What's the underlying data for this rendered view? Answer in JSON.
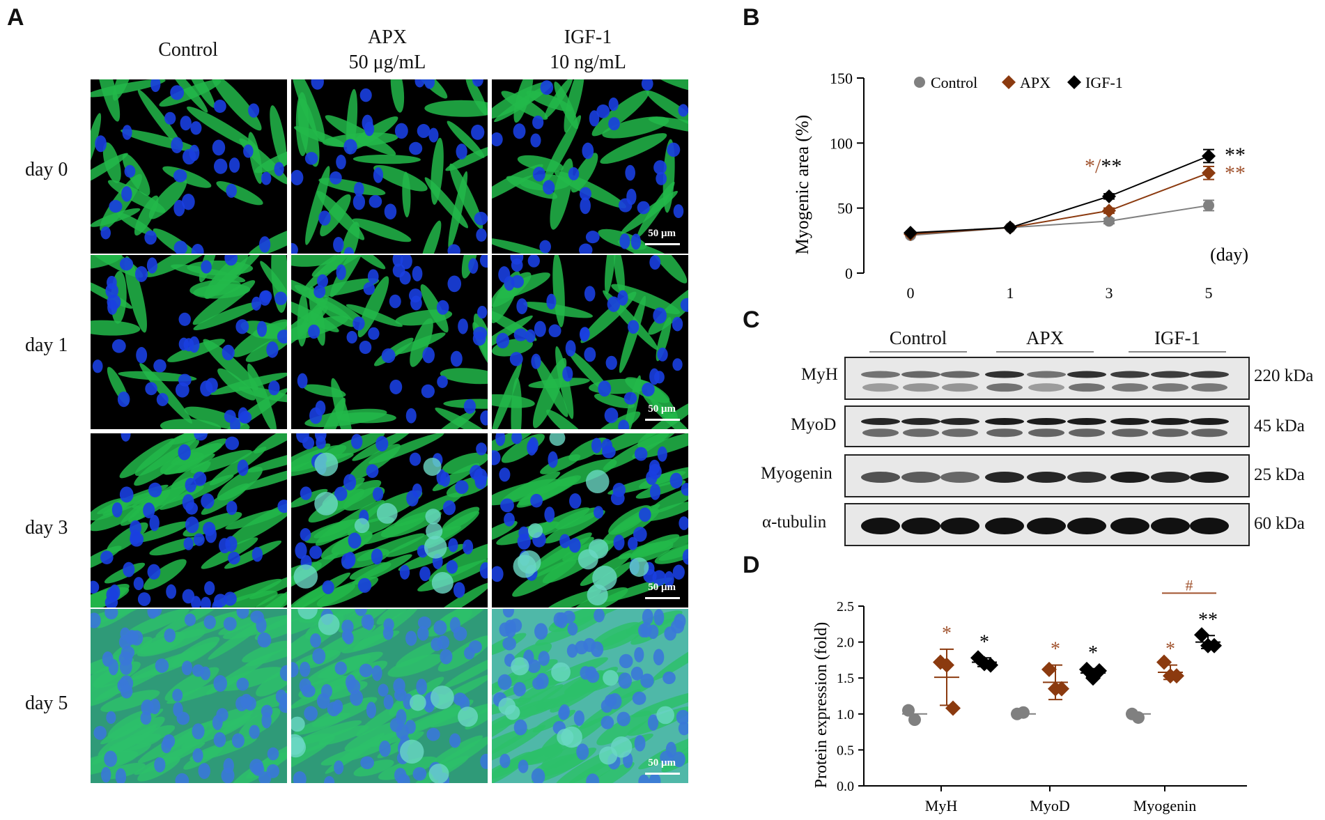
{
  "panels": {
    "a": "A",
    "b": "B",
    "c": "C",
    "d": "D"
  },
  "micrographs": {
    "columns": [
      {
        "line1": "Control",
        "line2": ""
      },
      {
        "line1": "APX",
        "line2": "50 μg/mL"
      },
      {
        "line1": "IGF-1",
        "line2": "10 ng/mL"
      }
    ],
    "rows": [
      "day 0",
      "day 1",
      "day 3",
      "day 5"
    ],
    "scale_bar": "50 μm"
  },
  "chart_data": [
    {
      "type": "line",
      "panel": "B",
      "x": [
        0,
        1,
        3,
        5
      ],
      "xticklabels": [
        "0",
        "1",
        "3",
        "5"
      ],
      "xunit": "(day)",
      "ylabel": "Myogenic  area (%)",
      "ylim": [
        0,
        150
      ],
      "yticks": [
        0,
        50,
        100,
        150
      ],
      "series": [
        {
          "name": "Control",
          "values": [
            29,
            35,
            40,
            52
          ],
          "error": [
            0,
            0,
            2,
            4
          ],
          "color": "#808080",
          "marker": "circle"
        },
        {
          "name": "APX",
          "values": [
            30,
            35,
            48,
            77
          ],
          "error": [
            0,
            0,
            2,
            5
          ],
          "color": "#8b3a0f",
          "marker": "diamond"
        },
        {
          "name": "IGF-1",
          "values": [
            31,
            35,
            59,
            90
          ],
          "error": [
            0,
            0,
            2,
            5
          ],
          "color": "#000000",
          "marker": "diamond"
        }
      ],
      "annotations": [
        {
          "x": 3,
          "parts": [
            {
              "text": "*",
              "color": "#a0522d"
            },
            {
              "text": "/",
              "color": "#a0522d"
            },
            {
              "text": "**",
              "color": "#000000"
            }
          ]
        },
        {
          "x": 5,
          "series": "IGF-1",
          "text": "**",
          "color": "#000000"
        },
        {
          "x": 5,
          "series": "APX",
          "text": "**",
          "color": "#a0522d"
        }
      ],
      "legend": "top",
      "grid": false
    },
    {
      "type": "scatter",
      "panel": "D",
      "categories": [
        "MyH",
        "MyoD",
        "Myogenin"
      ],
      "ylabel": "Protein  expression  (fold)",
      "ylim": [
        0,
        2.5
      ],
      "yticks": [
        "0.0",
        "0.5",
        "1.0",
        "1.5",
        "2.0",
        "2.5"
      ],
      "series": [
        {
          "name": "Control",
          "color": "#808080",
          "marker": "circle",
          "points": [
            [
              1.05,
              0.92
            ],
            [
              1.0,
              1.02
            ],
            [
              1.0,
              0.95
            ]
          ],
          "mean": [
            1.0,
            1.0,
            1.0
          ]
        },
        {
          "name": "APX",
          "color": "#8b3a0f",
          "marker": "diamond",
          "points": [
            [
              1.72,
              1.68,
              1.08
            ],
            [
              1.62,
              1.35,
              1.35
            ],
            [
              1.72,
              1.53,
              1.53
            ]
          ],
          "mean": [
            1.51,
            1.44,
            1.58
          ],
          "sd": [
            0.39,
            0.24,
            0.1
          ]
        },
        {
          "name": "IGF-1",
          "color": "#000000",
          "marker": "diamond",
          "points": [
            [
              1.78,
              1.7,
              1.68
            ],
            [
              1.62,
              1.5,
              1.6
            ],
            [
              2.1,
              1.95,
              1.95
            ]
          ],
          "mean": [
            1.72,
            1.57,
            2.0
          ],
          "sd": [
            0.06,
            0.06,
            0.09
          ]
        }
      ],
      "annotations": [
        {
          "category": "MyH",
          "series": "APX",
          "text": "*",
          "color": "#a0522d"
        },
        {
          "category": "MyH",
          "series": "IGF-1",
          "text": "*",
          "color": "#000000"
        },
        {
          "category": "MyoD",
          "series": "APX",
          "text": "*",
          "color": "#a0522d"
        },
        {
          "category": "MyoD",
          "series": "IGF-1",
          "text": "*",
          "color": "#000000"
        },
        {
          "category": "Myogenin",
          "series": "APX",
          "text": "*",
          "color": "#a0522d"
        },
        {
          "category": "Myogenin",
          "series": "IGF-1",
          "text": "**",
          "color": "#000000"
        },
        {
          "category": "Myogenin",
          "text": "#",
          "color": "#a0522d",
          "bracket": [
            "APX",
            "IGF-1"
          ]
        }
      ]
    }
  ],
  "blot": {
    "groups": [
      "Control",
      "APX",
      "IGF-1"
    ],
    "rows": [
      {
        "label": "MyH",
        "kda": "220 kDa"
      },
      {
        "label": "MyoD",
        "kda": "45 kDa"
      },
      {
        "label": "Myogenin",
        "kda": "25 kDa"
      },
      {
        "label": "α-tubulin",
        "kda": "60 kDa"
      }
    ]
  }
}
